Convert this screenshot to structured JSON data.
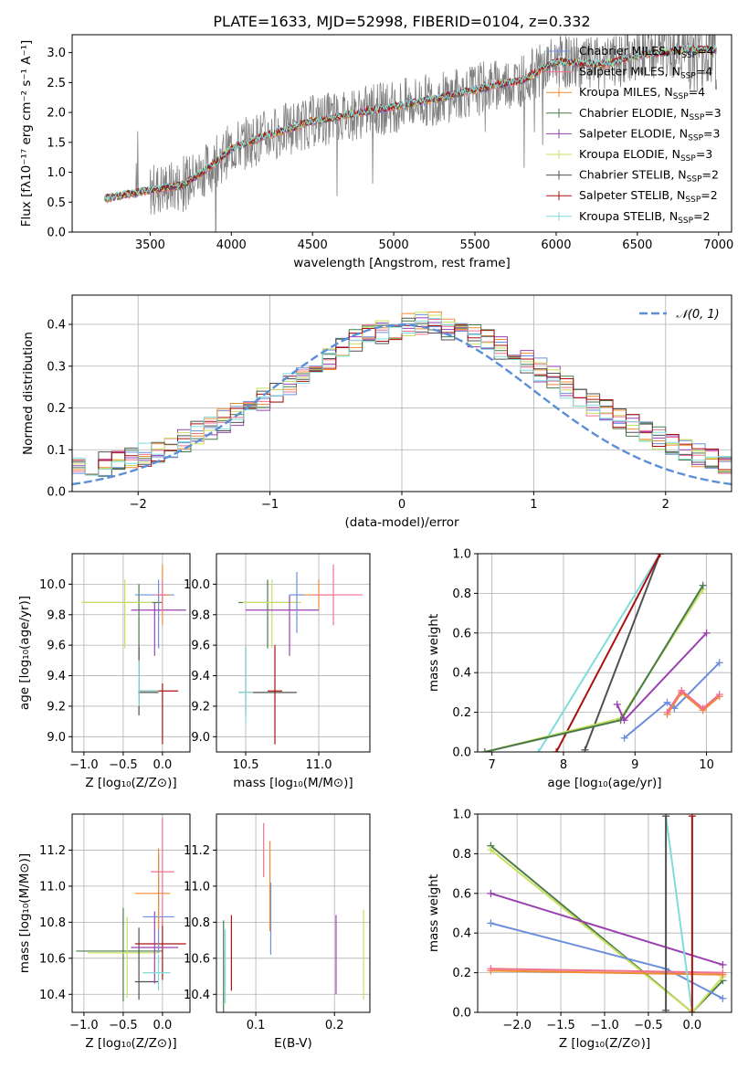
{
  "title": "PLATE=1633, MJD=52998, FIBERID=0104, z=0.332",
  "colors": {
    "spectrum": "#808080",
    "gray": "#808080",
    "cm": "#6b8fdc",
    "sm": "#f07090",
    "km": "#f08a30",
    "ce": "#4a7a4a",
    "se": "#9a40b0",
    "ke": "#c8e060",
    "cs": "#505050",
    "ss": "#aa1010",
    "ks": "#80dcdc",
    "normal": "#5b8fd8",
    "grid": "#b0b0b0"
  },
  "legend_spec": [
    {
      "text": "Chabrier MILES, N",
      "sub": "SSP",
      "tail": "=4",
      "color": "cm",
      "marker": "plus"
    },
    {
      "text": "Salpeter MILES, N",
      "sub": "SSP",
      "tail": "=4",
      "color": "sm",
      "marker": "plus"
    },
    {
      "text": "Kroupa MILES, N",
      "sub": "SSP",
      "tail": "=4",
      "color": "km",
      "marker": "plus"
    },
    {
      "text": "Chabrier ELODIE, N",
      "sub": "SSP",
      "tail": "=3",
      "color": "ce",
      "marker": "plus"
    },
    {
      "text": "Salpeter ELODIE, N",
      "sub": "SSP",
      "tail": "=3",
      "color": "se",
      "marker": "plus"
    },
    {
      "text": "Kroupa ELODIE, N",
      "sub": "SSP",
      "tail": "=3",
      "color": "ke",
      "marker": "plus"
    },
    {
      "text": "Chabrier STELIB, N",
      "sub": "SSP",
      "tail": "=2",
      "color": "cs",
      "marker": "plus"
    },
    {
      "text": "Salpeter STELIB, N",
      "sub": "SSP",
      "tail": "=2",
      "color": "ss",
      "marker": "plus"
    },
    {
      "text": "Kroupa STELIB, N",
      "sub": "SSP",
      "tail": "=2",
      "color": "ks",
      "marker": "plus"
    }
  ],
  "chart_data": [
    {
      "type": "line",
      "xlabel": "wavelength [Angstrom, rest frame]",
      "ylabel": "Flux [fλ10⁻¹⁷ erg cm⁻² s⁻¹ A⁻¹]",
      "xlim": [
        3020,
        7080
      ],
      "ylim": [
        0,
        3.3
      ],
      "xticks": [
        3500,
        4000,
        4500,
        5000,
        5500,
        6000,
        6500,
        7000
      ],
      "yticks": [
        0.0,
        0.5,
        1.0,
        1.5,
        2.0,
        2.5,
        3.0
      ],
      "model_x": [
        3200,
        3500,
        3700,
        3900,
        4000,
        4200,
        4500,
        4800,
        5000,
        5300,
        5500,
        5800,
        6000,
        6300,
        6500,
        6800
      ],
      "model_y": [
        0.55,
        0.7,
        0.78,
        1.15,
        1.4,
        1.6,
        1.85,
        2.0,
        2.1,
        2.25,
        2.38,
        2.55,
        2.85,
        2.8,
        2.95,
        3.05
      ],
      "legend_loc": "upper right"
    },
    {
      "type": "histogram",
      "xlabel": "(data-model)/error",
      "ylabel": "Normed distribution",
      "xlim": [
        -2.5,
        2.5
      ],
      "ylim": [
        0,
        0.47
      ],
      "xticks": [
        -2,
        -1,
        0,
        1,
        2
      ],
      "yticks": [
        0.0,
        0.1,
        0.2,
        0.3,
        0.4
      ],
      "normal_label": "𝒩(0, 1)",
      "bin_width": 0.1,
      "bins_center_values": [
        0.02,
        0.025,
        0.03,
        0.035,
        0.04,
        0.05,
        0.055,
        0.065,
        0.07,
        0.08,
        0.09,
        0.1,
        0.11,
        0.125,
        0.14,
        0.15,
        0.17,
        0.185,
        0.2,
        0.22,
        0.24,
        0.26,
        0.28,
        0.3,
        0.32,
        0.34,
        0.36,
        0.37,
        0.38,
        0.39,
        0.4,
        0.4,
        0.4,
        0.39,
        0.385,
        0.375,
        0.36,
        0.345,
        0.33,
        0.31,
        0.29,
        0.27,
        0.25,
        0.23,
        0.21,
        0.19,
        0.17,
        0.155,
        0.14,
        0.125,
        0.11,
        0.095,
        0.085,
        0.075,
        0.065,
        0.055,
        0.045,
        0.04,
        0.035,
        0.03
      ]
    },
    {
      "type": "scatter",
      "xlabel": "Z [log₁₀(Z/Z⊙)]",
      "ylabel": "age  [log₁₀(age/yr)]",
      "xlim": [
        -1.15,
        0.35
      ],
      "ylim": [
        8.9,
        10.2
      ],
      "xticks": [
        -1.0,
        -0.5,
        0.0
      ],
      "yticks": [
        9.0,
        9.2,
        9.4,
        9.6,
        9.8,
        10.0
      ]
    },
    {
      "type": "scatter",
      "xlabel": "mass [log₁₀(M/M⊙)]",
      "xlim": [
        10.3,
        11.35
      ],
      "ylim": [
        8.9,
        10.2
      ],
      "xticks": [
        10.5,
        11.0
      ],
      "yticks": [
        9.0,
        9.2,
        9.4,
        9.6,
        9.8,
        10.0
      ]
    },
    {
      "type": "line",
      "xlabel": "age  [log₁₀(age/yr)]",
      "ylabel": "mass weight",
      "xlim": [
        6.8,
        10.35
      ],
      "ylim": [
        0,
        1.0
      ],
      "xticks": [
        7,
        8,
        9,
        10
      ],
      "yticks": [
        0.0,
        0.2,
        0.4,
        0.6,
        0.8,
        1.0
      ]
    },
    {
      "type": "scatter",
      "xlabel": "Z [log₁₀(Z/Z⊙)]",
      "ylabel": "mass [log₁₀(M/M⊙)]",
      "xlim": [
        -1.15,
        0.35
      ],
      "ylim": [
        10.3,
        11.4
      ],
      "xticks": [
        -1.0,
        -0.5,
        0.0
      ],
      "yticks": [
        10.4,
        10.6,
        10.8,
        11.0,
        11.2
      ]
    },
    {
      "type": "scatter",
      "xlabel": "E(B-V)",
      "xlim": [
        0.05,
        0.245
      ],
      "ylim": [
        10.3,
        11.4
      ],
      "xticks": [
        0.1,
        0.2
      ],
      "yticks": [
        10.4,
        10.6,
        10.8,
        11.0,
        11.2
      ]
    },
    {
      "type": "line",
      "xlabel": "Z [log₁₀(Z/Z⊙)]",
      "ylabel": "mass weight",
      "xlim": [
        -2.45,
        0.45
      ],
      "ylim": [
        0,
        1.0
      ],
      "xticks": [
        -2.0,
        -1.5,
        -1.0,
        -0.5,
        0.0
      ],
      "yticks": [
        0.0,
        0.2,
        0.4,
        0.6,
        0.8,
        1.0
      ]
    }
  ]
}
